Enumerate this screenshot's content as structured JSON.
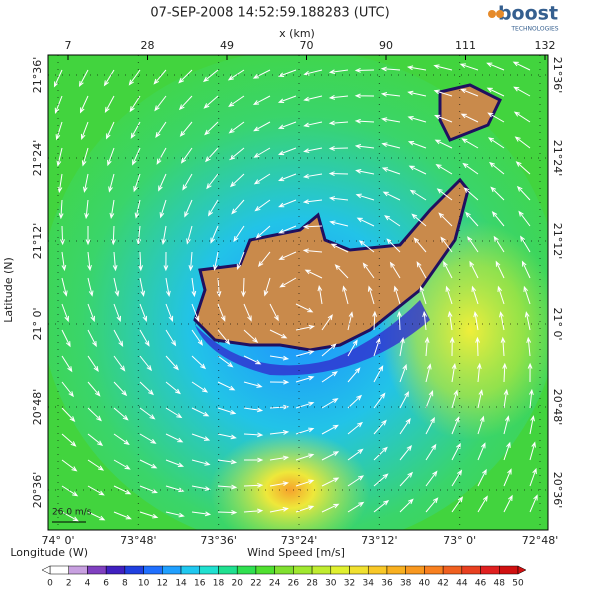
{
  "title": "07-SEP-2008 14:52:59.188283 (UTC)",
  "logo": {
    "name": "boost",
    "subtitle": "TECHNOLOGIES"
  },
  "top_axis": {
    "label": "x (km)",
    "ticks": [
      7,
      28,
      49,
      70,
      90,
      111,
      132
    ]
  },
  "lat_axis": {
    "label": "Latitude (N)",
    "ticks": [
      "21°36'",
      "21°24'",
      "21°12'",
      "21° 0'",
      "20°48'",
      "20°36'"
    ]
  },
  "lon_axis": {
    "label": "Longitude (W)",
    "ticks": [
      "74° 0'",
      "73°48'",
      "73°36'",
      "73°24'",
      "73°12'",
      "73° 0'",
      "72°48'"
    ]
  },
  "scale_label": "26.0 m/s",
  "colorbar": {
    "label": "Wind Speed [m/s]",
    "ticks": [
      0,
      2,
      4,
      6,
      8,
      10,
      12,
      14,
      16,
      18,
      20,
      22,
      24,
      26,
      28,
      30,
      32,
      34,
      36,
      38,
      40,
      42,
      44,
      46,
      48,
      50
    ]
  }
}
